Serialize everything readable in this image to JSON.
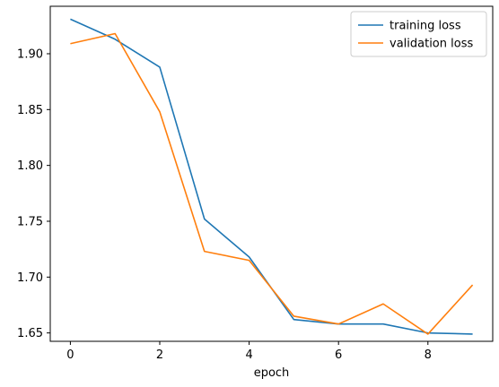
{
  "chart_data": {
    "type": "line",
    "title": "",
    "xlabel": "epoch",
    "ylabel": "",
    "xlim": [
      -0.45,
      9.45
    ],
    "ylim": [
      1.6425,
      1.9425
    ],
    "xticks": [
      0,
      2,
      4,
      6,
      8
    ],
    "yticks": [
      1.65,
      1.7,
      1.75,
      1.8,
      1.85,
      1.9
    ],
    "xtick_labels": [
      "0",
      "2",
      "4",
      "6",
      "8"
    ],
    "ytick_labels": [
      "1.65",
      "1.70",
      "1.75",
      "1.80",
      "1.85",
      "1.90"
    ],
    "grid": false,
    "legend_position": "top-right",
    "x": [
      0,
      1,
      2,
      3,
      4,
      5,
      6,
      7,
      8,
      9
    ],
    "series": [
      {
        "name": "training loss",
        "color": "#1f77b4",
        "values": [
          1.931,
          1.913,
          1.888,
          1.752,
          1.718,
          1.662,
          1.658,
          1.658,
          1.65,
          1.649
        ]
      },
      {
        "name": "validation loss",
        "color": "#ff7f0e",
        "values": [
          1.909,
          1.918,
          1.848,
          1.723,
          1.715,
          1.665,
          1.658,
          1.676,
          1.649,
          1.693
        ]
      }
    ]
  }
}
